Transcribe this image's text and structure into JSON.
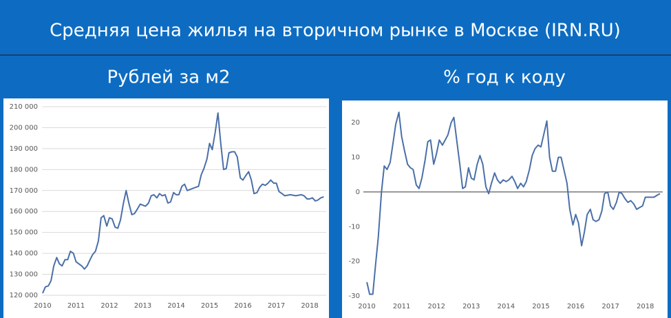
{
  "header": {
    "title": "Средняя цена жилья на вторичном рынке в Москве (IRN.RU)"
  },
  "chart_data": [
    {
      "type": "line",
      "title": "Рублей за м2",
      "color": "#4a6fa8",
      "grid": true,
      "xlim": [
        2009.9,
        2018.5
      ],
      "xticks": [
        2010,
        2011,
        2012,
        2013,
        2014,
        2015,
        2016,
        2017,
        2018
      ],
      "ylim": [
        120000,
        210000
      ],
      "yticks": [
        {
          "value": 120000,
          "label": "120 000"
        },
        {
          "value": 130000,
          "label": "130 000"
        },
        {
          "value": 140000,
          "label": "140 000"
        },
        {
          "value": 150000,
          "label": "150 000"
        },
        {
          "value": 160000,
          "label": "160 000"
        },
        {
          "value": 170000,
          "label": "170 000"
        },
        {
          "value": 180000,
          "label": "180 000"
        },
        {
          "value": 190000,
          "label": "190 000"
        },
        {
          "value": 200000,
          "label": "200 000"
        },
        {
          "value": 210000,
          "label": "210 000"
        }
      ],
      "x": [
        2010.0,
        2010.08,
        2010.17,
        2010.25,
        2010.33,
        2010.42,
        2010.5,
        2010.58,
        2010.67,
        2010.75,
        2010.83,
        2010.92,
        2011.0,
        2011.17,
        2011.25,
        2011.33,
        2011.42,
        2011.5,
        2011.58,
        2011.67,
        2011.75,
        2011.83,
        2011.92,
        2012.0,
        2012.08,
        2012.17,
        2012.25,
        2012.33,
        2012.42,
        2012.5,
        2012.58,
        2012.67,
        2012.75,
        2012.83,
        2012.92,
        2013.0,
        2013.08,
        2013.17,
        2013.25,
        2013.33,
        2013.42,
        2013.5,
        2013.58,
        2013.67,
        2013.75,
        2013.83,
        2013.92,
        2014.0,
        2014.08,
        2014.17,
        2014.25,
        2014.33,
        2014.5,
        2014.58,
        2014.67,
        2014.75,
        2014.83,
        2014.92,
        2015.0,
        2015.08,
        2015.17,
        2015.25,
        2015.33,
        2015.42,
        2015.5,
        2015.58,
        2015.67,
        2015.75,
        2015.83,
        2015.92,
        2016.0,
        2016.08,
        2016.17,
        2016.25,
        2016.33,
        2016.42,
        2016.5,
        2016.58,
        2016.67,
        2016.75,
        2016.83,
        2016.92,
        2017.0,
        2017.08,
        2017.17,
        2017.25,
        2017.42,
        2017.58,
        2017.75,
        2017.83,
        2017.92,
        2018.0,
        2018.08,
        2018.17,
        2018.25,
        2018.33,
        2018.42
      ],
      "values": [
        121000,
        124000,
        124500,
        127000,
        134000,
        138000,
        135000,
        134000,
        137000,
        137000,
        141000,
        140000,
        136000,
        134000,
        132500,
        134000,
        137000,
        139500,
        141000,
        146000,
        157000,
        158000,
        153000,
        157000,
        156500,
        152500,
        152000,
        156000,
        164000,
        170000,
        164000,
        158500,
        159000,
        161000,
        163500,
        163000,
        162500,
        164000,
        167500,
        168000,
        166500,
        168500,
        167500,
        168000,
        164000,
        164500,
        169000,
        168000,
        168000,
        172000,
        173000,
        170000,
        171000,
        171500,
        172000,
        177500,
        180500,
        185000,
        192500,
        189500,
        198000,
        207000,
        193000,
        180000,
        180500,
        188000,
        188500,
        188500,
        186000,
        176000,
        175000,
        177000,
        179000,
        175000,
        168500,
        169000,
        171500,
        173000,
        172500,
        173500,
        175000,
        173500,
        173500,
        169500,
        168500,
        167500,
        168000,
        167500,
        168000,
        167500,
        166000,
        166000,
        166500,
        165000,
        165500,
        166500,
        167000
      ]
    },
    {
      "type": "line",
      "title": "% год к коду",
      "color": "#4a6fa8",
      "grid": false,
      "xlim": [
        2009.9,
        2018.5
      ],
      "xticks": [
        2010,
        2011,
        2012,
        2013,
        2014,
        2015,
        2016,
        2017,
        2018
      ],
      "ylim": [
        -30,
        25
      ],
      "yticks": [
        -30,
        -20,
        -10,
        0,
        10,
        20
      ],
      "x": [
        2010.0,
        2010.08,
        2010.17,
        2010.25,
        2010.33,
        2010.42,
        2010.5,
        2010.58,
        2010.67,
        2010.75,
        2010.83,
        2010.92,
        2011.0,
        2011.08,
        2011.17,
        2011.25,
        2011.33,
        2011.42,
        2011.5,
        2011.58,
        2011.67,
        2011.75,
        2011.83,
        2011.92,
        2012.0,
        2012.08,
        2012.17,
        2012.25,
        2012.33,
        2012.42,
        2012.5,
        2012.58,
        2012.67,
        2012.75,
        2012.83,
        2012.92,
        2013.0,
        2013.08,
        2013.17,
        2013.25,
        2013.33,
        2013.42,
        2013.5,
        2013.58,
        2013.67,
        2013.75,
        2013.83,
        2013.92,
        2014.0,
        2014.08,
        2014.17,
        2014.25,
        2014.33,
        2014.42,
        2014.5,
        2014.58,
        2014.67,
        2014.75,
        2014.83,
        2014.92,
        2015.0,
        2015.08,
        2015.17,
        2015.25,
        2015.33,
        2015.42,
        2015.5,
        2015.58,
        2015.67,
        2015.75,
        2015.83,
        2015.92,
        2016.0,
        2016.08,
        2016.17,
        2016.25,
        2016.33,
        2016.42,
        2016.5,
        2016.58,
        2016.67,
        2016.75,
        2016.83,
        2016.92,
        2017.0,
        2017.08,
        2017.17,
        2017.25,
        2017.33,
        2017.42,
        2017.5,
        2017.58,
        2017.67,
        2017.75,
        2017.83,
        2017.92,
        2018.0,
        2018.17,
        2018.25,
        2018.33,
        2018.42
      ],
      "values": [
        -26,
        -29.5,
        -29.5,
        -21,
        -13,
        0,
        7.5,
        6.5,
        8.5,
        14,
        19.5,
        23,
        16,
        12,
        8,
        7,
        6.5,
        2,
        1,
        4,
        9,
        14.5,
        15,
        8,
        11,
        15,
        13.5,
        15,
        16.5,
        20,
        21.5,
        15,
        8,
        1,
        1.5,
        7,
        4,
        3.5,
        8,
        10.5,
        8,
        1.5,
        -0.5,
        2.5,
        5.5,
        3.5,
        2.5,
        3.5,
        3,
        3.5,
        4.5,
        3,
        1,
        2.5,
        1.5,
        3,
        6.5,
        10.5,
        12.5,
        13.5,
        13,
        16.5,
        20.5,
        10,
        6,
        6,
        10,
        10,
        6,
        2.5,
        -5,
        -9.5,
        -6.5,
        -9,
        -15.5,
        -11.5,
        -6.5,
        -5,
        -8,
        -8.5,
        -8,
        -5.5,
        -0.5,
        0,
        -4,
        -5,
        -3,
        0,
        -0.5,
        -2,
        -3,
        -2.5,
        -3.5,
        -5,
        -4.5,
        -4,
        -1.5,
        -1.5,
        -1.5,
        -1,
        -0.5
      ]
    }
  ]
}
